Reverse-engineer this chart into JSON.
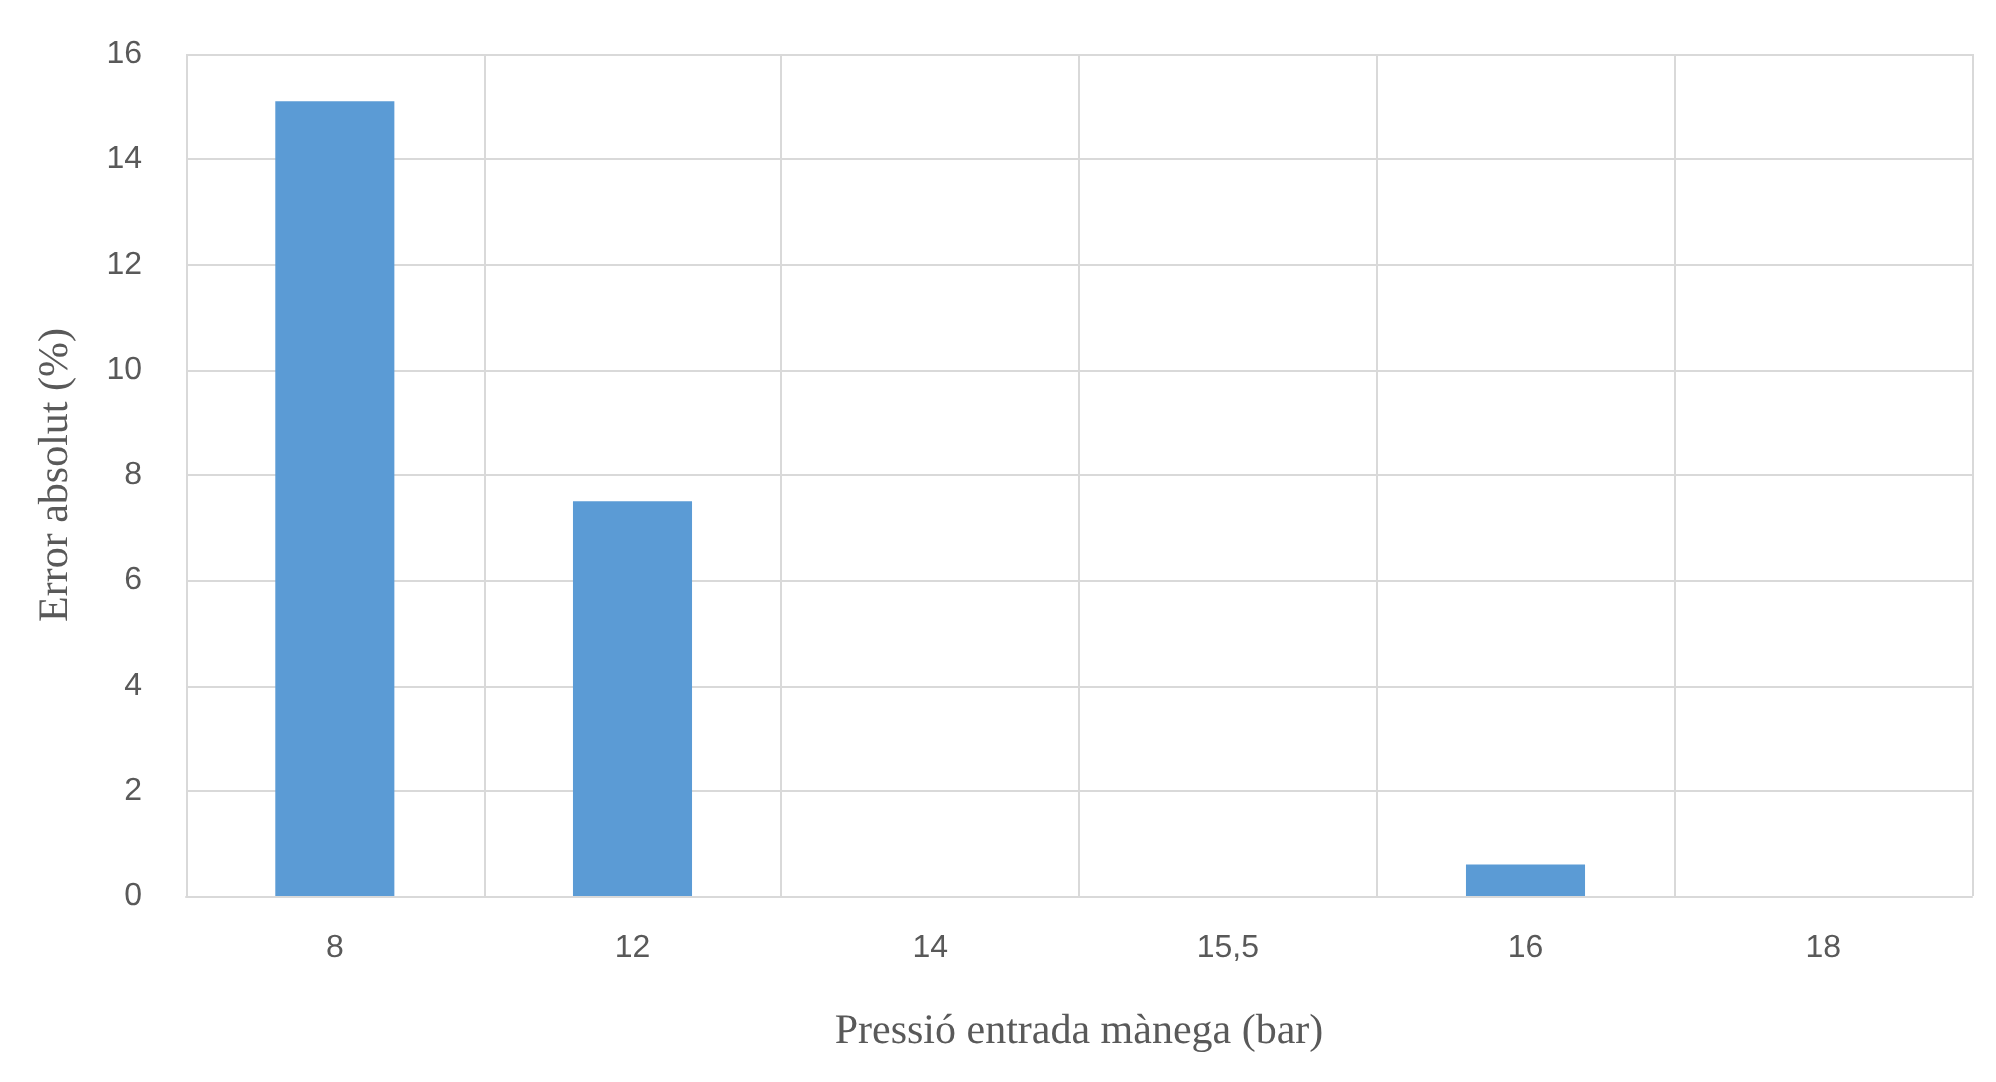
{
  "chart_data": {
    "type": "bar",
    "xlabel": "Pressió entrada mànega (bar)",
    "ylabel": "Error absolut (%)",
    "categories": [
      "8",
      "12",
      "14",
      "15,5",
      "16",
      "18"
    ],
    "values": [
      15.1,
      7.5,
      0,
      0,
      0.6,
      0
    ],
    "color": "#5b9bd5",
    "ylim": [
      0,
      16
    ],
    "yticks": [
      0,
      2,
      4,
      6,
      8,
      10,
      12,
      14,
      16
    ],
    "grid": true
  }
}
